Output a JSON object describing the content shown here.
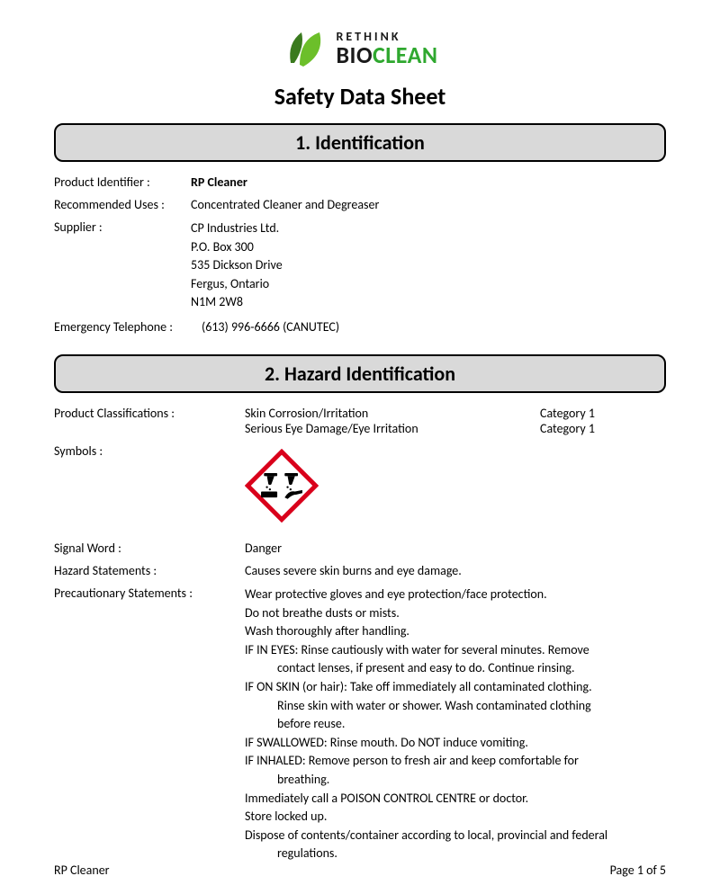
{
  "logo": {
    "line1": "RETHINK",
    "line2_bio": "BIO",
    "line2_clean": "CLEAN",
    "leaf_dark": "#3a7a1e",
    "leaf_light": "#6cbf2a",
    "bio_color": "#1a1a1a",
    "clean_color": "#2fa82f"
  },
  "doc_title": "Safety Data Sheet",
  "section1": {
    "heading": "1. Identification",
    "product_label": "Product Identifier :",
    "product_value": "RP Cleaner",
    "uses_label": "Recommended Uses :",
    "uses_value": "Concentrated Cleaner and Degreaser",
    "supplier_label": "Supplier :",
    "supplier_lines": [
      "CP Industries Ltd.",
      "P.O. Box 300",
      "535 Dickson Drive",
      "Fergus, Ontario",
      "N1M 2W8"
    ],
    "emerg_label": "Emergency Telephone :",
    "emerg_value": "(613) 996-6666 (CANUTEC)"
  },
  "section2": {
    "heading": "2. Hazard Identification",
    "class_label": "Product Classifications :",
    "classifications": [
      {
        "name": "Skin Corrosion/Irritation",
        "category": "Category 1"
      },
      {
        "name": "Serious Eye Damage/Eye Irritation",
        "category": "Category 1"
      }
    ],
    "symbols_label": "Symbols :",
    "pictogram_border": "#d9001b",
    "signal_label": "Signal Word :",
    "signal_value": "Danger",
    "hazard_label": "Hazard Statements :",
    "hazard_value": "Causes severe skin burns and eye damage.",
    "precaution_label": "Precautionary Statements :",
    "precaution_lines": [
      {
        "text": "Wear protective gloves and eye protection/face protection.",
        "indent": false
      },
      {
        "text": "Do not breathe dusts or mists.",
        "indent": false
      },
      {
        "text": "Wash thoroughly after handling.",
        "indent": false
      },
      {
        "text": "IF IN EYES: Rinse cautiously with water for several minutes. Remove",
        "indent": false
      },
      {
        "text": "contact lenses, if present and easy to do. Continue rinsing.",
        "indent": true
      },
      {
        "text": "IF ON SKIN (or hair): Take off immediately all contaminated clothing.",
        "indent": false
      },
      {
        "text": "Rinse skin with water or shower. Wash contaminated clothing",
        "indent": true
      },
      {
        "text": "before reuse.",
        "indent": true
      },
      {
        "text": "IF SWALLOWED: Rinse mouth. Do NOT induce vomiting.",
        "indent": false
      },
      {
        "text": "IF INHALED: Remove person to fresh air and keep comfortable for",
        "indent": false
      },
      {
        "text": "breathing.",
        "indent": true
      },
      {
        "text": "Immediately call a POISON CONTROL CENTRE or doctor.",
        "indent": false
      },
      {
        "text": "Store locked up.",
        "indent": false
      },
      {
        "text": "Dispose of contents/container according to local, provincial and federal",
        "indent": false
      },
      {
        "text": "regulations.",
        "indent": true
      }
    ]
  },
  "footer": {
    "left": "RP Cleaner",
    "right": "Page 1 of 5"
  }
}
